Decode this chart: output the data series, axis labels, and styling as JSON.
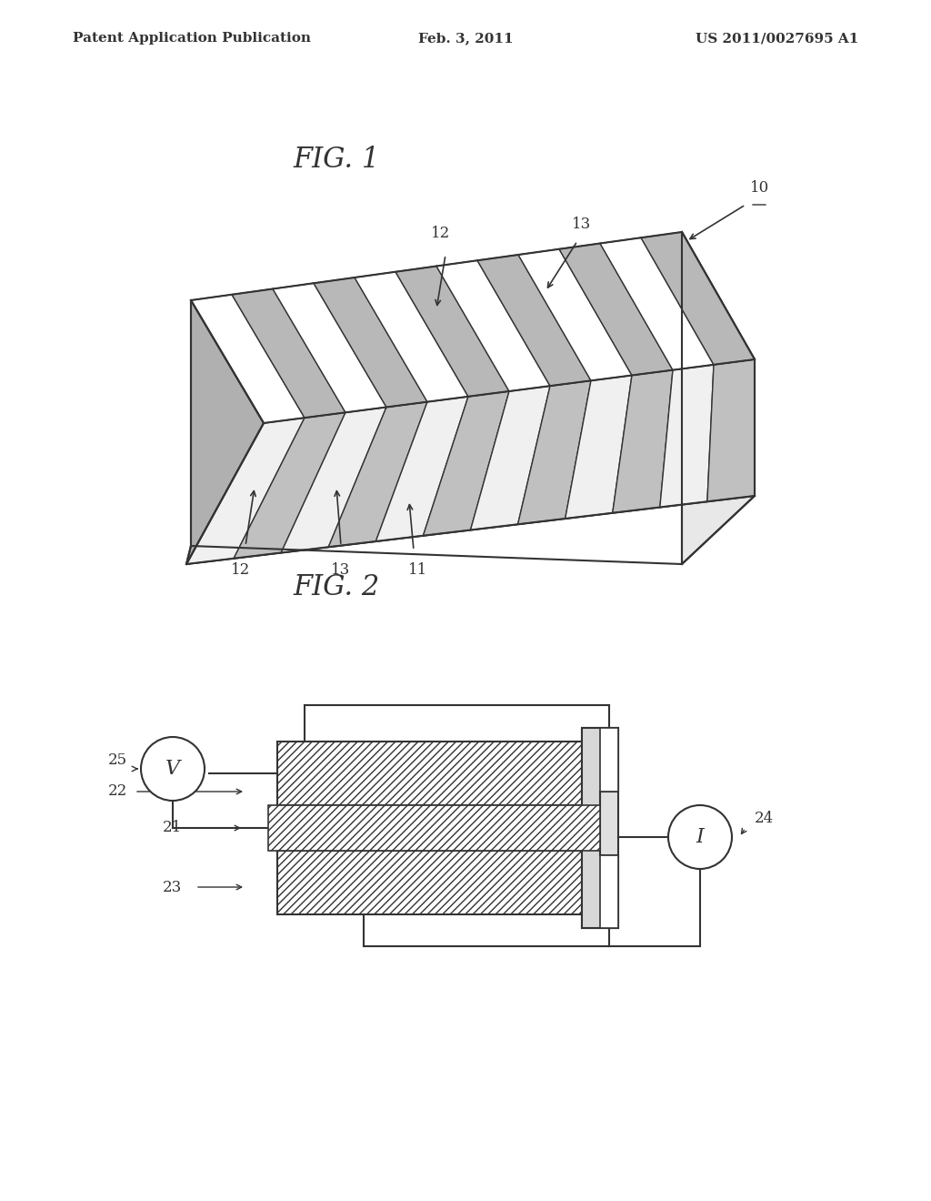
{
  "header_left": "Patent Application Publication",
  "header_center": "Feb. 3, 2011",
  "header_right": "US 2011/0027695 A1",
  "fig1_label": "FIG. 1",
  "fig2_label": "FIG. 2",
  "bg_color": "#ffffff",
  "line_color": "#333333",
  "hatch_color": "#555555",
  "label_10": "10",
  "label_11": "11",
  "label_12_top": "12",
  "label_12_bot": "12",
  "label_13_top": "13",
  "label_13_bot": "13",
  "label_21": "21",
  "label_22": "22",
  "label_23": "23",
  "label_24": "24",
  "label_25": "25"
}
